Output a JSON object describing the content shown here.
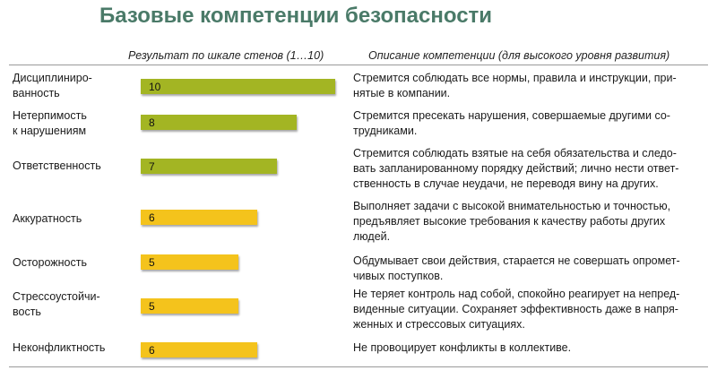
{
  "title": "Базовые компетенции безопасности",
  "headers": {
    "score": "Результат по шкале стенов (1…10)",
    "description": "Описание компетенции (для высокого уровня развития)"
  },
  "colors": {
    "title": "#4a7a68",
    "high": "#a3b523",
    "medium": "#f4c31c"
  },
  "chart_data": {
    "type": "bar",
    "orientation": "horizontal",
    "title": "Базовые компетенции безопасности",
    "xlabel": "Результат по шкале стенов (1…10)",
    "xlim": [
      0,
      10
    ],
    "categories": [
      "Дисциплиниро-\nванность",
      "Нетерпимость\nк нарушениям",
      "Ответственность",
      "Аккуратность",
      "Осторожность",
      "Стрессоустойчи-\nвость",
      "Неконфликтность"
    ],
    "values": [
      10,
      8,
      7,
      6,
      5,
      5,
      6
    ],
    "bar_colors": [
      "#a3b523",
      "#a3b523",
      "#a3b523",
      "#f4c31c",
      "#f4c31c",
      "#f4c31c",
      "#f4c31c"
    ]
  },
  "rows": [
    {
      "label": "Дисциплиниро-\nванность",
      "value": "10",
      "description": "Стремится соблюдать все нормы, правила и инструкции, при-\nнятые в компании."
    },
    {
      "label": "Нетерпимость\nк нарушениям",
      "value": "8",
      "description": "Стремится пресекать нарушения, совершаемые другими со-\nтрудниками."
    },
    {
      "label": "Ответственность",
      "value": "7",
      "description": "Стремится соблюдать взятые на себя обязательства и следо-\nвать запланированному порядку действий; лично нести ответ-\nственность в случае неудачи, не переводя вину на других."
    },
    {
      "label": "Аккуратность",
      "value": "6",
      "description": "Выполняет задачи с высокой внимательностью и точностью,\nпредъявляет высокие требования к качеству работы других\nлюдей."
    },
    {
      "label": "Осторожность",
      "value": "5",
      "description": "Обдумывает свои действия, старается не совершать опромет-\nчивых поступков."
    },
    {
      "label": "Стрессоустойчи-\nвость",
      "value": "5",
      "description": "Не теряет контроль над собой, спокойно реагирует на непред-\nвиденные ситуации. Сохраняет эффективность даже в напря-\nженных и стрессовых ситуациях."
    },
    {
      "label": "Неконфликтность",
      "value": "6",
      "description": "Не провоцирует конфликты в коллективе."
    }
  ]
}
